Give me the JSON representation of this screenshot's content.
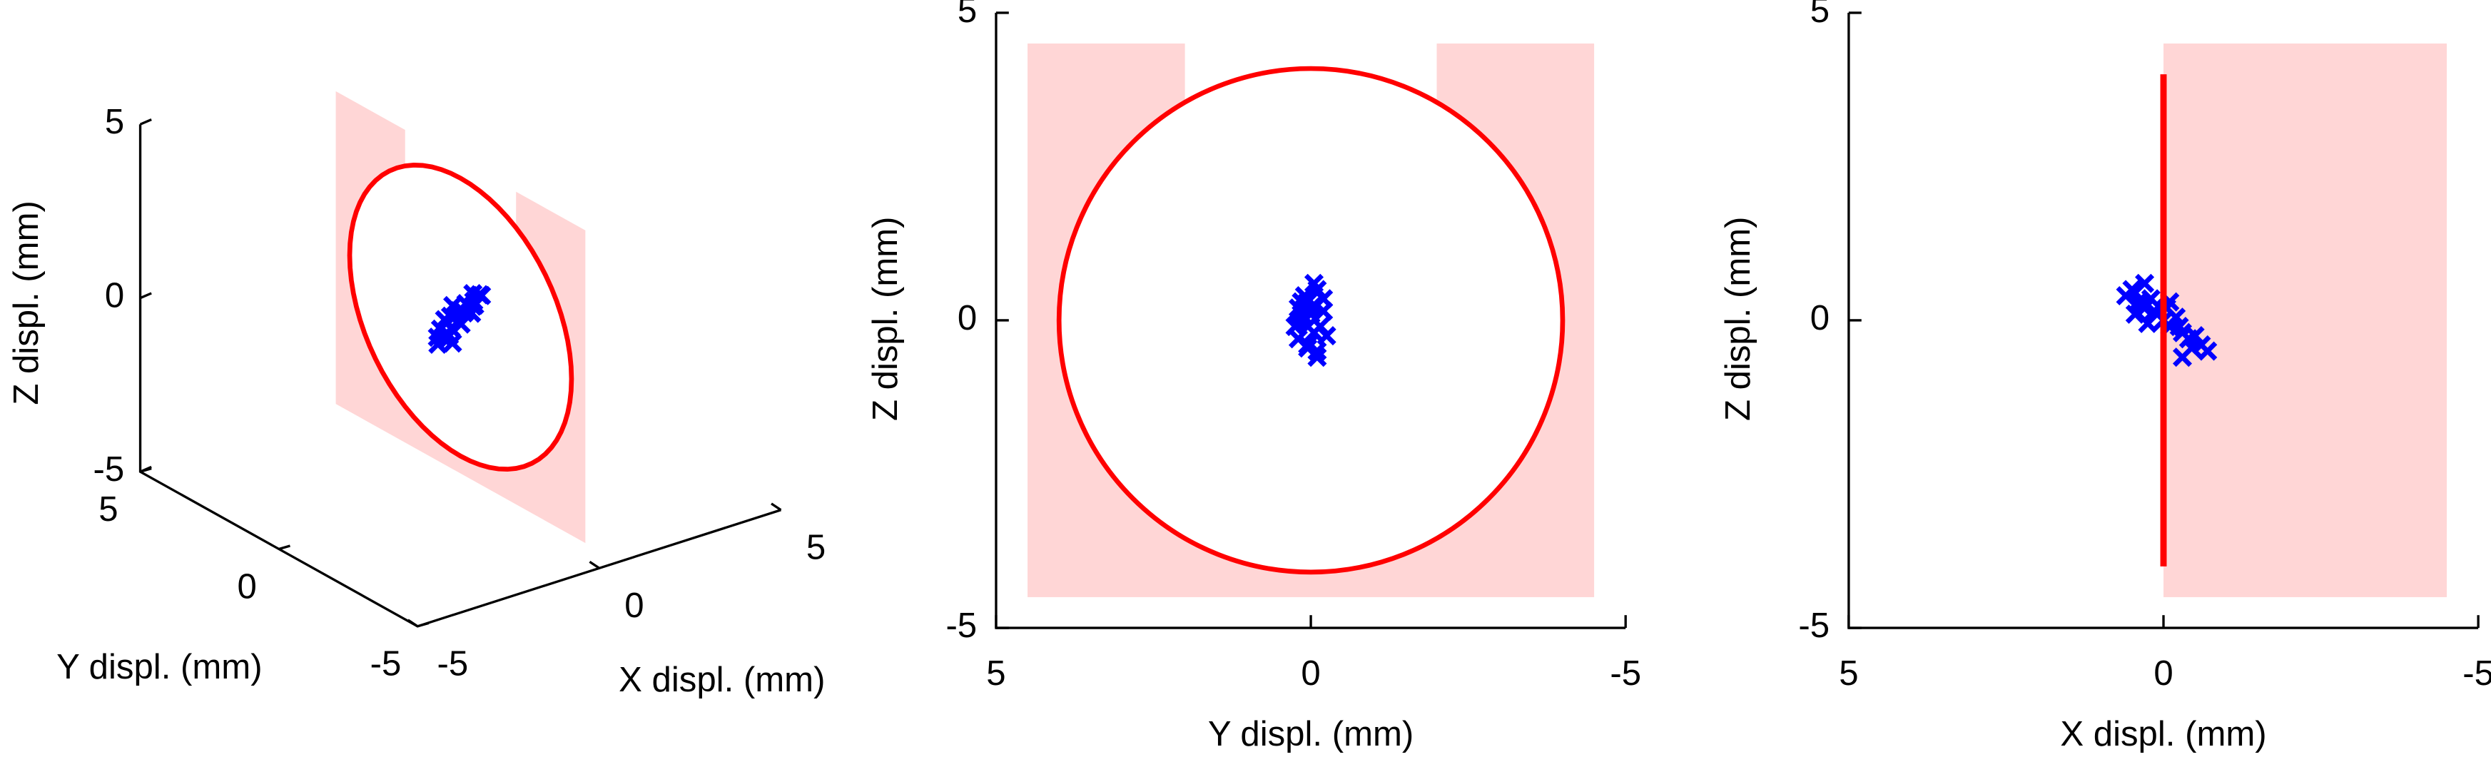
{
  "chart_data": [
    {
      "type": "scatter3d",
      "xlabel": "X displ. (mm)",
      "ylabel": "Y displ. (mm)",
      "zlabel": "Z displ. (mm)",
      "xlim": [
        -5,
        5
      ],
      "ylim": [
        -5,
        5
      ],
      "zlim": [
        -5,
        5
      ],
      "xticks": [
        -5,
        0,
        5
      ],
      "yticks": [
        -5,
        0,
        5
      ],
      "zticks": [
        -5,
        0,
        5
      ],
      "x": [
        0.6,
        0.5,
        0.4,
        0.3,
        0.2,
        0.1,
        0.0,
        -0.1,
        -0.2,
        -0.3,
        -0.4,
        -0.5,
        -0.6,
        -0.7,
        0.45,
        0.35,
        0.25,
        0.15,
        -0.05,
        -0.25,
        -0.45,
        0.3,
        -0.1,
        -0.3
      ],
      "y": [
        0.1,
        -0.1,
        0.05,
        0.2,
        -0.2,
        0.0,
        0.15,
        -0.15,
        0.1,
        -0.05,
        0.2,
        -0.25,
        0.05,
        -0.1,
        0.15,
        -0.05,
        0.2,
        -0.2,
        0.0,
        0.25,
        0.05,
        -0.05,
        0.15,
        -0.1
      ],
      "z": [
        0.4,
        0.5,
        0.3,
        0.2,
        0.35,
        0.1,
        0.0,
        -0.1,
        0.05,
        -0.2,
        -0.3,
        -0.25,
        -0.4,
        -0.5,
        0.1,
        0.25,
        -0.05,
        0.15,
        0.2,
        -0.1,
        -0.45,
        0.6,
        0.3,
        -0.6
      ],
      "color": "#0000ff",
      "ring": {
        "center": [
          0,
          0,
          0
        ],
        "radius": 4,
        "color": "#ff0000"
      },
      "shade": {
        "x": 0,
        "y": [
          4.5,
          -4.5
        ],
        "z": [
          -4.5,
          4.5
        ],
        "notch": [
          2,
          -2
        ],
        "color": "#ffd6d6"
      }
    },
    {
      "type": "scatter",
      "xlabel": "Y displ. (mm)",
      "ylabel": "Z displ. (mm)",
      "xlim": [
        5,
        -5
      ],
      "ylim": [
        -5,
        5
      ],
      "xticks": [
        5,
        0,
        -5
      ],
      "yticks": [
        -5,
        0,
        5
      ],
      "x": [
        0.1,
        -0.1,
        0.05,
        0.2,
        -0.2,
        0.0,
        0.15,
        -0.15,
        0.1,
        -0.05,
        0.2,
        -0.25,
        0.05,
        -0.1,
        0.15,
        -0.05,
        0.2,
        -0.2,
        0.0,
        0.25,
        0.05,
        -0.05,
        0.15,
        -0.1
      ],
      "y": [
        0.4,
        0.5,
        0.3,
        0.2,
        0.35,
        0.1,
        0.0,
        -0.1,
        0.05,
        -0.2,
        -0.3,
        -0.25,
        -0.4,
        -0.5,
        0.1,
        0.25,
        -0.05,
        0.15,
        0.2,
        -0.1,
        -0.45,
        0.6,
        0.3,
        -0.6
      ],
      "color": "#0000ff",
      "ring": {
        "center": [
          0,
          0
        ],
        "radius": 4,
        "view": "face",
        "color": "#ff0000"
      },
      "shade": {
        "x": [
          4.5,
          -4.5
        ],
        "y": [
          -4.5,
          4.5
        ],
        "notch": [
          2,
          -2
        ],
        "color": "#ffd6d6"
      }
    },
    {
      "type": "scatter",
      "xlabel": "X displ. (mm)",
      "ylabel": "Z displ. (mm)",
      "xlim": [
        5,
        -5
      ],
      "ylim": [
        -5,
        5
      ],
      "xticks": [
        5,
        0,
        -5
      ],
      "yticks": [
        -5,
        0,
        5
      ],
      "x": [
        0.6,
        0.5,
        0.4,
        0.3,
        0.2,
        0.1,
        0.0,
        -0.1,
        -0.2,
        -0.3,
        -0.4,
        -0.5,
        -0.6,
        -0.7,
        0.45,
        0.35,
        0.25,
        0.15,
        -0.05,
        -0.25,
        -0.45,
        0.3,
        -0.1,
        -0.3
      ],
      "y": [
        0.4,
        0.5,
        0.3,
        0.2,
        0.35,
        0.1,
        0.0,
        -0.1,
        0.05,
        -0.2,
        -0.3,
        -0.25,
        -0.4,
        -0.5,
        0.1,
        0.25,
        -0.05,
        0.15,
        0.2,
        -0.1,
        -0.45,
        0.6,
        0.3,
        -0.6
      ],
      "color": "#0000ff",
      "ring": {
        "center": [
          0,
          0
        ],
        "radius": 4,
        "view": "edge",
        "color": "#ff0000"
      },
      "shade": {
        "x": [
          0,
          -4.5
        ],
        "y": [
          -4.5,
          4.5
        ],
        "color": "#ffd6d6"
      }
    }
  ]
}
